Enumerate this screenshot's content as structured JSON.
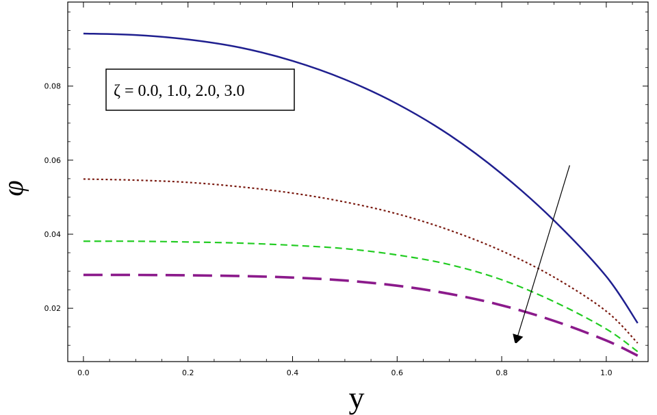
{
  "chart_data": {
    "type": "line",
    "xlabel": "y",
    "ylabel": "φ",
    "xlim": [
      -0.03,
      1.08
    ],
    "ylim": [
      0.0056,
      0.1027
    ],
    "x_ticks": [
      0.0,
      0.2,
      0.4,
      0.6,
      0.8,
      1.0
    ],
    "x_tick_labels": [
      "0.0",
      "0.2",
      "0.4",
      "0.6",
      "0.8",
      "1.0"
    ],
    "y_ticks": [
      0.02,
      0.04,
      0.06,
      0.08
    ],
    "y_tick_labels": [
      "0.02",
      "0.04",
      "0.06",
      "0.08"
    ],
    "annotation": "ζ = 0.0, 1.0, 2.0, 3.0",
    "arrow": {
      "from": [
        0.93,
        0.0586
      ],
      "to": [
        0.83,
        0.0122
      ]
    },
    "series": [
      {
        "color": "#1f1f8f",
        "style": "solid",
        "x": [
          0.0,
          0.1,
          0.2,
          0.3,
          0.4,
          0.5,
          0.6,
          0.7,
          0.8,
          0.9,
          1.0,
          1.06
        ],
        "y": [
          0.0942,
          0.0938,
          0.0926,
          0.0904,
          0.0868,
          0.0818,
          0.0752,
          0.0668,
          0.0563,
          0.0437,
          0.0286,
          0.016
        ]
      },
      {
        "color": "#7a1a10",
        "style": "dotted",
        "x": [
          0.0,
          0.1,
          0.2,
          0.3,
          0.4,
          0.5,
          0.6,
          0.7,
          0.8,
          0.9,
          1.0,
          1.06
        ],
        "y": [
          0.0549,
          0.0546,
          0.054,
          0.0528,
          0.0511,
          0.0487,
          0.0455,
          0.0411,
          0.0355,
          0.0284,
          0.0192,
          0.0106
        ]
      },
      {
        "color": "#22cc22",
        "style": "dashed",
        "x": [
          0.0,
          0.1,
          0.2,
          0.3,
          0.4,
          0.5,
          0.6,
          0.7,
          0.8,
          0.9,
          1.0,
          1.06
        ],
        "y": [
          0.0381,
          0.0381,
          0.0379,
          0.0376,
          0.037,
          0.0361,
          0.0344,
          0.0318,
          0.0277,
          0.0218,
          0.0144,
          0.0083
        ]
      },
      {
        "color": "#8b1a8b",
        "style": "long-dashed",
        "x": [
          0.0,
          0.1,
          0.2,
          0.3,
          0.4,
          0.5,
          0.6,
          0.7,
          0.8,
          0.9,
          1.0,
          1.06
        ],
        "y": [
          0.029,
          0.029,
          0.0289,
          0.0287,
          0.0283,
          0.0275,
          0.0261,
          0.0239,
          0.0208,
          0.0166,
          0.0113,
          0.0072
        ]
      }
    ]
  }
}
